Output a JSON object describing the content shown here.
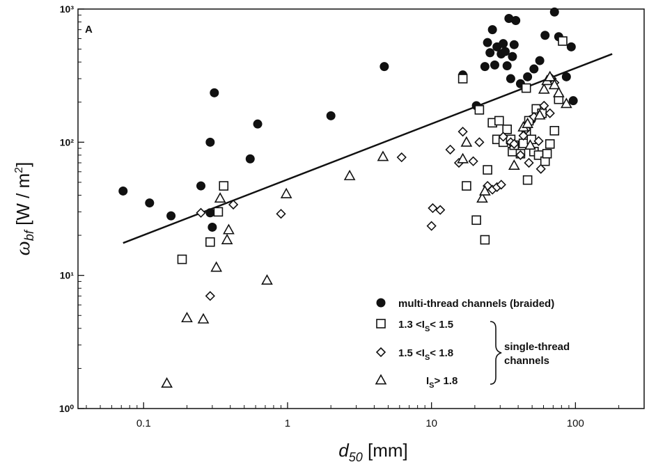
{
  "chart_data": {
    "type": "scatter",
    "panel_label": "A",
    "xlabel": "d50 [mm]",
    "ylabel": "ωbf [W / m2]",
    "x_scale": "log",
    "y_scale": "log",
    "xlim": [
      0.035,
      300
    ],
    "ylim": [
      1,
      1000
    ],
    "xticks": [
      {
        "value": 0.1,
        "label": "0.1"
      },
      {
        "value": 1,
        "label": "1"
      },
      {
        "value": 10,
        "label": "10"
      },
      {
        "value": 100,
        "label": "100"
      }
    ],
    "yticks": [
      {
        "value": 1,
        "label": "10⁰"
      },
      {
        "value": 10,
        "label": "10¹"
      },
      {
        "value": 100,
        "label": "10²"
      },
      {
        "value": 1000,
        "label": "10³"
      }
    ],
    "fit_line": {
      "x": [
        0.072,
        180
      ],
      "y": [
        17.5,
        460
      ]
    },
    "legend": {
      "placement": "bottom-right",
      "entries": [
        {
          "marker": "circle",
          "label": "multi-thread channels (braided)"
        },
        {
          "marker": "square",
          "label": "1.3 <I<sub>S</sub>< 1.5",
          "text_main": "1.3 <I",
          "text_sub": "S",
          "text_tail": "< 1.5"
        },
        {
          "marker": "diamond",
          "text_main": "1.5 <I",
          "text_sub": "S",
          "text_tail": "< 1.8"
        },
        {
          "marker": "triangle",
          "text_main": "I",
          "text_sub": "S",
          "text_tail": "> 1.8"
        }
      ],
      "group_label_line1": "single-thread",
      "group_label_line2": "channels"
    },
    "series": [
      {
        "name": "multi-thread channels (braided)",
        "marker": "circle",
        "points": [
          [
            0.072,
            43
          ],
          [
            0.11,
            35
          ],
          [
            0.155,
            28
          ],
          [
            0.25,
            47
          ],
          [
            0.29,
            100
          ],
          [
            0.29,
            29.5
          ],
          [
            0.3,
            23
          ],
          [
            0.31,
            235
          ],
          [
            0.55,
            75
          ],
          [
            0.62,
            137
          ],
          [
            2.0,
            158
          ],
          [
            4.7,
            370
          ],
          [
            16.5,
            320
          ],
          [
            20.5,
            188
          ],
          [
            23.5,
            370
          ],
          [
            24.5,
            560
          ],
          [
            25.5,
            470
          ],
          [
            26.5,
            700
          ],
          [
            27.5,
            380
          ],
          [
            28.5,
            520
          ],
          [
            30.5,
            460
          ],
          [
            31.5,
            550
          ],
          [
            32.5,
            480
          ],
          [
            33.5,
            375
          ],
          [
            34.5,
            850
          ],
          [
            35.5,
            300
          ],
          [
            36.5,
            440
          ],
          [
            37.5,
            540
          ],
          [
            38.5,
            820
          ],
          [
            41.5,
            275
          ],
          [
            46.5,
            310
          ],
          [
            49.5,
            148
          ],
          [
            51.5,
            355
          ],
          [
            56.5,
            410
          ],
          [
            61.5,
            635
          ],
          [
            71.5,
            950
          ],
          [
            76.5,
            620
          ],
          [
            81.5,
            575
          ],
          [
            86.5,
            310
          ],
          [
            93.5,
            520
          ],
          [
            96.5,
            205
          ]
        ]
      },
      {
        "name": "1.3 <IS< 1.5",
        "marker": "square",
        "points": [
          [
            0.185,
            13.2
          ],
          [
            0.29,
            17.8
          ],
          [
            0.33,
            30
          ],
          [
            0.36,
            47
          ],
          [
            16.5,
            300
          ],
          [
            17.5,
            47
          ],
          [
            20.5,
            26
          ],
          [
            21.5,
            175
          ],
          [
            23.5,
            18.5
          ],
          [
            24.5,
            62
          ],
          [
            26.5,
            140
          ],
          [
            28.5,
            105
          ],
          [
            29.5,
            145
          ],
          [
            31.5,
            100
          ],
          [
            33.5,
            125
          ],
          [
            35.5,
            105
          ],
          [
            36.5,
            85
          ],
          [
            37.5,
            95
          ],
          [
            41.5,
            82
          ],
          [
            43.5,
            98
          ],
          [
            45.5,
            120
          ],
          [
            46.5,
            52
          ],
          [
            47.5,
            145
          ],
          [
            49.5,
            105
          ],
          [
            51.5,
            85
          ],
          [
            53.5,
            178
          ],
          [
            55.5,
            80
          ],
          [
            58.5,
            165
          ],
          [
            61.5,
            72
          ],
          [
            63.5,
            82
          ],
          [
            66.5,
            97
          ],
          [
            71.5,
            122
          ],
          [
            76.5,
            210
          ],
          [
            81.5,
            575
          ],
          [
            45.5,
            255
          ]
        ]
      },
      {
        "name": "1.5 <IS< 1.8",
        "marker": "diamond",
        "points": [
          [
            0.25,
            29.5
          ],
          [
            0.29,
            7
          ],
          [
            0.42,
            34
          ],
          [
            0.9,
            29
          ],
          [
            6.2,
            77
          ],
          [
            10,
            23.5
          ],
          [
            10.2,
            32
          ],
          [
            11.5,
            31
          ],
          [
            13.5,
            88
          ],
          [
            15.5,
            70
          ],
          [
            16.5,
            120
          ],
          [
            19.5,
            72
          ],
          [
            21.5,
            100
          ],
          [
            24.5,
            47
          ],
          [
            26.5,
            44
          ],
          [
            28.5,
            46
          ],
          [
            30.5,
            48
          ],
          [
            31.5,
            110
          ],
          [
            35.5,
            100
          ],
          [
            37.5,
            97
          ],
          [
            41.5,
            80
          ],
          [
            43.5,
            112
          ],
          [
            45.5,
            125
          ],
          [
            47.5,
            70
          ],
          [
            51.5,
            155
          ],
          [
            55.5,
            102
          ],
          [
            57.5,
            63
          ],
          [
            60.5,
            188
          ],
          [
            66.5,
            165
          ],
          [
            68.5,
            300
          ],
          [
            71.5,
            280
          ]
        ]
      },
      {
        "name": "IS> 1.8",
        "marker": "triangle",
        "points": [
          [
            0.145,
            1.55
          ],
          [
            0.2,
            4.8
          ],
          [
            0.26,
            4.7
          ],
          [
            0.32,
            11.5
          ],
          [
            0.34,
            38
          ],
          [
            0.38,
            18.5
          ],
          [
            0.39,
            22
          ],
          [
            0.72,
            9.2
          ],
          [
            0.98,
            41
          ],
          [
            2.7,
            56
          ],
          [
            4.6,
            78
          ],
          [
            16.5,
            75
          ],
          [
            17.5,
            100
          ],
          [
            22.5,
            38
          ],
          [
            23.5,
            43
          ],
          [
            37.5,
            67
          ],
          [
            43.5,
            130
          ],
          [
            46.5,
            138
          ],
          [
            48.5,
            95
          ],
          [
            56.5,
            160
          ],
          [
            60.5,
            250
          ],
          [
            63.5,
            290
          ],
          [
            66.5,
            310
          ],
          [
            71.5,
            270
          ],
          [
            76.5,
            235
          ],
          [
            86.5,
            195
          ]
        ]
      }
    ]
  }
}
